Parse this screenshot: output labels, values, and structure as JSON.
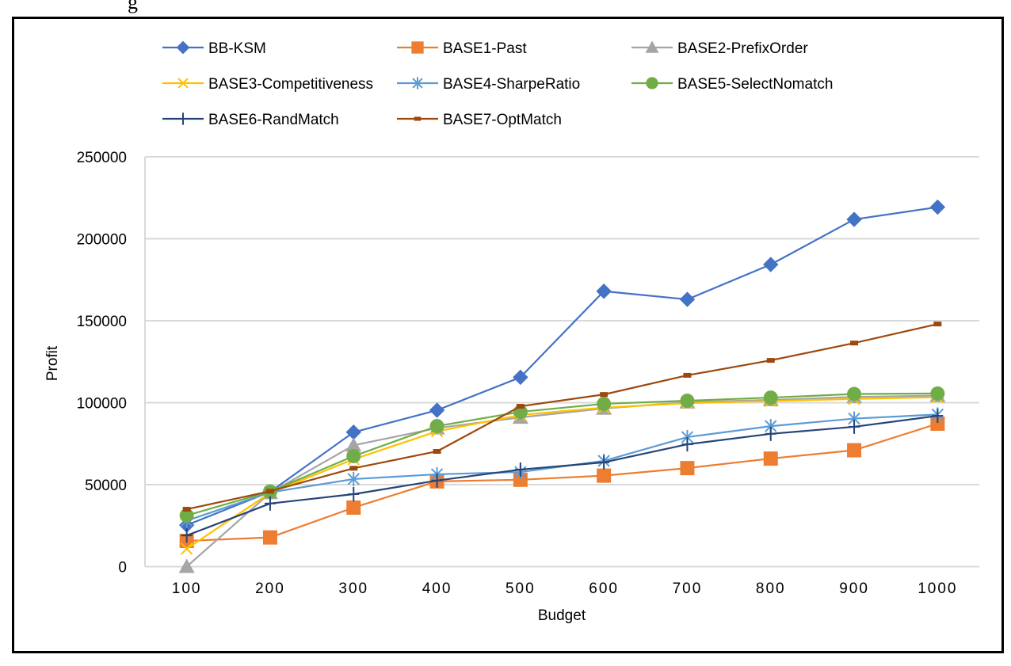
{
  "page": {
    "top_cut_text": "g"
  },
  "chart_data": {
    "type": "line",
    "title": "",
    "xlabel": "Budget",
    "ylabel": "Profit",
    "categories": [
      "100",
      "200",
      "300",
      "400",
      "500",
      "600",
      "700",
      "800",
      "900",
      "1000"
    ],
    "ylim": [
      0,
      250000
    ],
    "yticks": [
      "0",
      "50000",
      "100000",
      "150000",
      "200000",
      "250000"
    ],
    "ytick_values": [
      0,
      50000,
      100000,
      150000,
      200000,
      250000
    ],
    "grid": true,
    "legend_position": "top",
    "series": [
      {
        "name": "BB-KSM",
        "color": "#4472C4",
        "marker": "diamond",
        "values": [
          25300,
          45600,
          82000,
          95400,
          115500,
          168000,
          163000,
          184300,
          211800,
          219300
        ]
      },
      {
        "name": "BASE1-Past",
        "color": "#ED7D31",
        "marker": "square",
        "values": [
          15700,
          17800,
          36000,
          52000,
          53000,
          55500,
          60100,
          65900,
          71000,
          87200
        ]
      },
      {
        "name": "BASE2-PrefixOrder",
        "color": "#A5A5A5",
        "marker": "triangle",
        "values": [
          0,
          45000,
          74000,
          84500,
          91000,
          96500,
          100300,
          101700,
          103500,
          104300
        ]
      },
      {
        "name": "BASE3-Competitiveness",
        "color": "#FFC000",
        "marker": "x",
        "values": [
          10900,
          45000,
          65500,
          82500,
          92500,
          97000,
          99700,
          101000,
          102300,
          103300
        ]
      },
      {
        "name": "BASE4-SharpeRatio",
        "color": "#5B9BD5",
        "marker": "star",
        "values": [
          28000,
          45300,
          53400,
          56300,
          57700,
          64500,
          79000,
          85700,
          90300,
          92800
        ]
      },
      {
        "name": "BASE5-SelectNomatch",
        "color": "#70AD47",
        "marker": "circle",
        "values": [
          31200,
          45800,
          67400,
          85700,
          94400,
          99300,
          101200,
          103100,
          105300,
          105600
        ]
      },
      {
        "name": "BASE6-RandMatch",
        "color": "#264478",
        "marker": "plus",
        "values": [
          19000,
          38500,
          44200,
          52500,
          59200,
          63600,
          74600,
          81000,
          85300,
          92000
        ]
      },
      {
        "name": "BASE7-OptMatch",
        "color": "#9E480E",
        "marker": "dash",
        "values": [
          35000,
          46000,
          60000,
          70300,
          97800,
          105000,
          116700,
          125800,
          136400,
          148000
        ]
      }
    ]
  }
}
